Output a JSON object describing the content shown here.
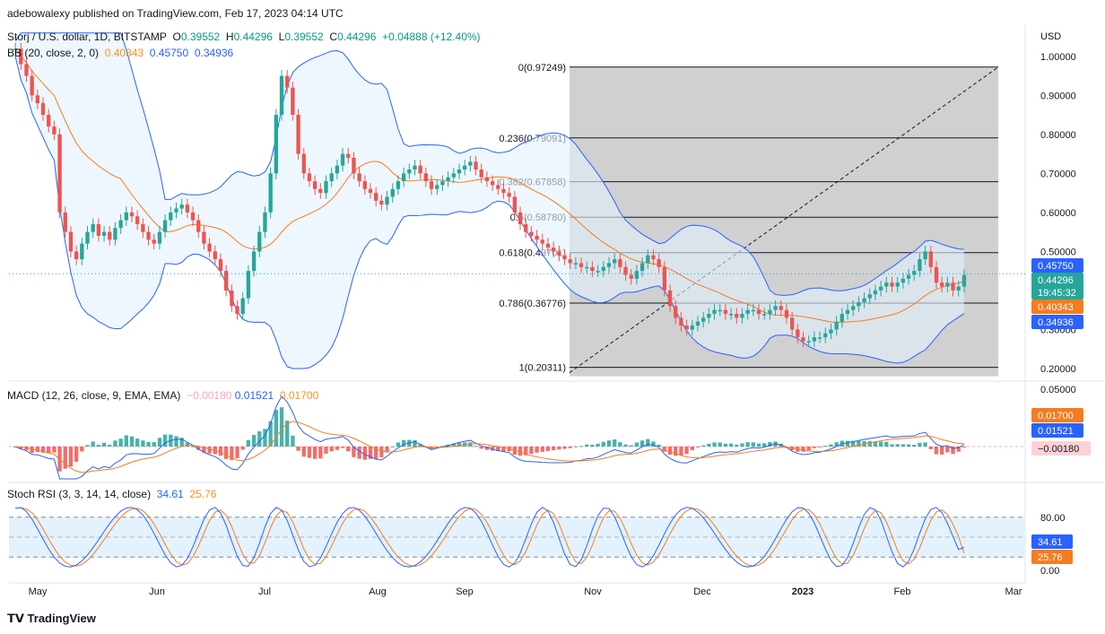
{
  "published_line": "adebowalexy published on TradingView.com, Feb 17, 2023 04:14 UTC",
  "legend": {
    "symbol": "Storj / U.S. dollar, 1D, BITSTAMP",
    "o_label": "O",
    "o_value": "0.39552",
    "h_label": "H",
    "h_value": "0.44296",
    "l_label": "L",
    "l_value": "0.39552",
    "c_label": "C",
    "c_value": "0.44296",
    "change": "+0.04888 (+12.40%)",
    "bb_label": "BB (20, close, 2, 0)",
    "bb_basis": "0.40343",
    "bb_upper": "0.45750",
    "bb_lower": "0.34936"
  },
  "macd_legend": {
    "label": "MACD (12, 26, close, 9, EMA, EMA)",
    "hist": "−0.00180",
    "macd": "0.01521",
    "signal": "0.01700"
  },
  "stoch_legend": {
    "label": "Stoch RSI (3, 3, 14, 14, close)",
    "k": "34.61",
    "d": "25.76"
  },
  "footer_brand": "TradingView",
  "colors": {
    "up": "#26a69a",
    "down": "#ef5350",
    "bb_band": "#2962ff",
    "bb_basis": "#f57c20",
    "fib_zone": "#c8c8c8",
    "stoch_fill": "#e3f2fd"
  },
  "chart_data": [
    {
      "type": "candlestick",
      "title": "Storj / U.S. dollar, 1D, BITSTAMP",
      "ylabel": "USD",
      "ylim": [
        0.17,
        1.08
      ],
      "y_ticks": [
        "1.00000",
        "0.90000",
        "0.80000",
        "0.70000",
        "0.60000",
        "0.50000",
        "0.40000",
        "0.30000",
        "0.20000"
      ],
      "x_ticks": [
        "May",
        "Jun",
        "Jul",
        "Aug",
        "Sep",
        "Nov",
        "Dec",
        "2023",
        "Feb",
        "Mar"
      ],
      "last_price": "0.44296",
      "countdown": "19:45:32",
      "price_tags": [
        {
          "label": "0.45750",
          "value": 0.4575,
          "color": "#2962ff"
        },
        {
          "label": "0.44296",
          "value": 0.44296,
          "color": "#26a69a"
        },
        {
          "label": "0.40343",
          "value": 0.40343,
          "color": "#f57c20"
        },
        {
          "label": "0.34936",
          "value": 0.34936,
          "color": "#2962ff"
        }
      ],
      "fib_levels": [
        {
          "label": "0(0.97249)",
          "value": 0.97249
        },
        {
          "label": "0.236(0.79091)",
          "value": 0.79091
        },
        {
          "label": "0.382(0.67858)",
          "value": 0.67858
        },
        {
          "label": "0.5(0.58780)",
          "value": 0.5878
        },
        {
          "label": "0.618(0.49701)",
          "value": 0.49701
        },
        {
          "label": "0.786(0.36776)",
          "value": 0.36776
        },
        {
          "label": "1(0.20311)",
          "value": 0.20311
        }
      ],
      "closes_approx": [
        1.02,
        0.98,
        0.95,
        0.9,
        0.88,
        0.85,
        0.82,
        0.8,
        0.6,
        0.55,
        0.5,
        0.48,
        0.52,
        0.55,
        0.57,
        0.54,
        0.55,
        0.53,
        0.56,
        0.58,
        0.6,
        0.59,
        0.57,
        0.55,
        0.53,
        0.52,
        0.55,
        0.58,
        0.6,
        0.61,
        0.62,
        0.6,
        0.58,
        0.55,
        0.52,
        0.5,
        0.48,
        0.45,
        0.4,
        0.36,
        0.34,
        0.38,
        0.45,
        0.5,
        0.55,
        0.6,
        0.7,
        0.85,
        0.95,
        0.92,
        0.85,
        0.75,
        0.7,
        0.68,
        0.66,
        0.65,
        0.68,
        0.7,
        0.72,
        0.75,
        0.74,
        0.7,
        0.68,
        0.66,
        0.65,
        0.63,
        0.62,
        0.64,
        0.66,
        0.68,
        0.7,
        0.71,
        0.72,
        0.7,
        0.68,
        0.66,
        0.67,
        0.68,
        0.69,
        0.7,
        0.71,
        0.72,
        0.73,
        0.71,
        0.69,
        0.68,
        0.67,
        0.66,
        0.65,
        0.64,
        0.6,
        0.57,
        0.55,
        0.54,
        0.53,
        0.52,
        0.51,
        0.5,
        0.49,
        0.48,
        0.47,
        0.47,
        0.46,
        0.46,
        0.45,
        0.45,
        0.46,
        0.47,
        0.48,
        0.46,
        0.44,
        0.43,
        0.45,
        0.47,
        0.49,
        0.48,
        0.46,
        0.4,
        0.36,
        0.33,
        0.31,
        0.3,
        0.31,
        0.32,
        0.33,
        0.34,
        0.35,
        0.35,
        0.34,
        0.34,
        0.33,
        0.34,
        0.35,
        0.35,
        0.34,
        0.34,
        0.35,
        0.36,
        0.35,
        0.33,
        0.3,
        0.28,
        0.27,
        0.27,
        0.28,
        0.28,
        0.29,
        0.3,
        0.32,
        0.34,
        0.35,
        0.36,
        0.37,
        0.38,
        0.39,
        0.4,
        0.41,
        0.42,
        0.41,
        0.42,
        0.43,
        0.44,
        0.45,
        0.48,
        0.5,
        0.46,
        0.42,
        0.41,
        0.42,
        0.4,
        0.41,
        0.44
      ]
    },
    {
      "type": "bar",
      "title": "MACD (12, 26, close, 9, EMA, EMA)",
      "y_ticks": [
        "0.05000",
        "0.00000"
      ],
      "values_summary": {
        "histogram": -0.0018,
        "macd": 0.01521,
        "signal": 0.017
      }
    },
    {
      "type": "line",
      "title": "Stoch RSI (3, 3, 14, 14, close)",
      "ylim": [
        0,
        100
      ],
      "y_ticks": [
        "80.00",
        "0.00"
      ],
      "bands": [
        80,
        50,
        20
      ],
      "series": [
        {
          "name": "K",
          "last": 34.61
        },
        {
          "name": "D",
          "last": 25.76
        }
      ]
    }
  ]
}
